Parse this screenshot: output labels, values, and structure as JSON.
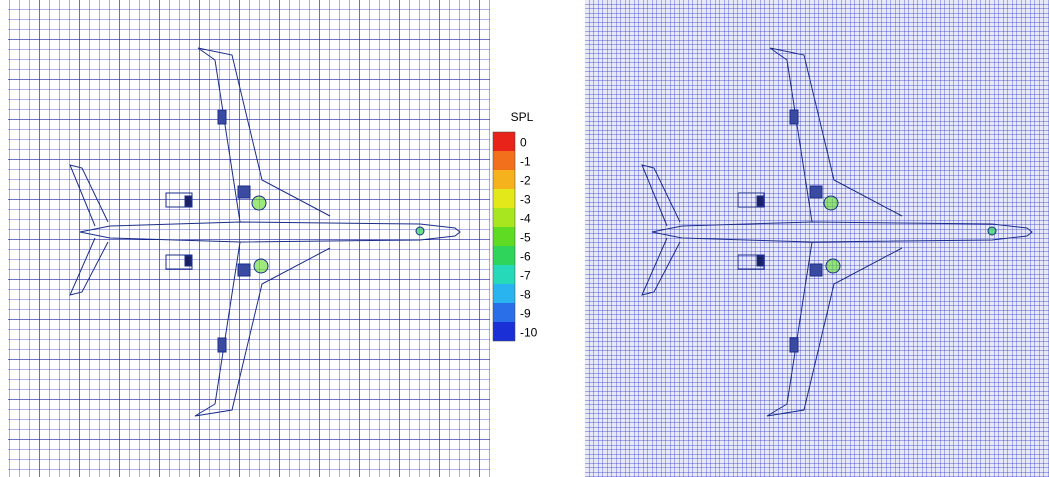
{
  "colorbar": {
    "title": "SPL",
    "labels": [
      "0",
      "-1",
      "-2",
      "-3",
      "-4",
      "-5",
      "-6",
      "-7",
      "-8",
      "-9",
      "-10"
    ],
    "colors": [
      "#e8231a",
      "#f2701c",
      "#f5b21c",
      "#e3e81a",
      "#a8e61f",
      "#5fdb24",
      "#2fd45a",
      "#26d9b8",
      "#29b4f0",
      "#2a6ee8",
      "#1b2fd6"
    ]
  }
}
